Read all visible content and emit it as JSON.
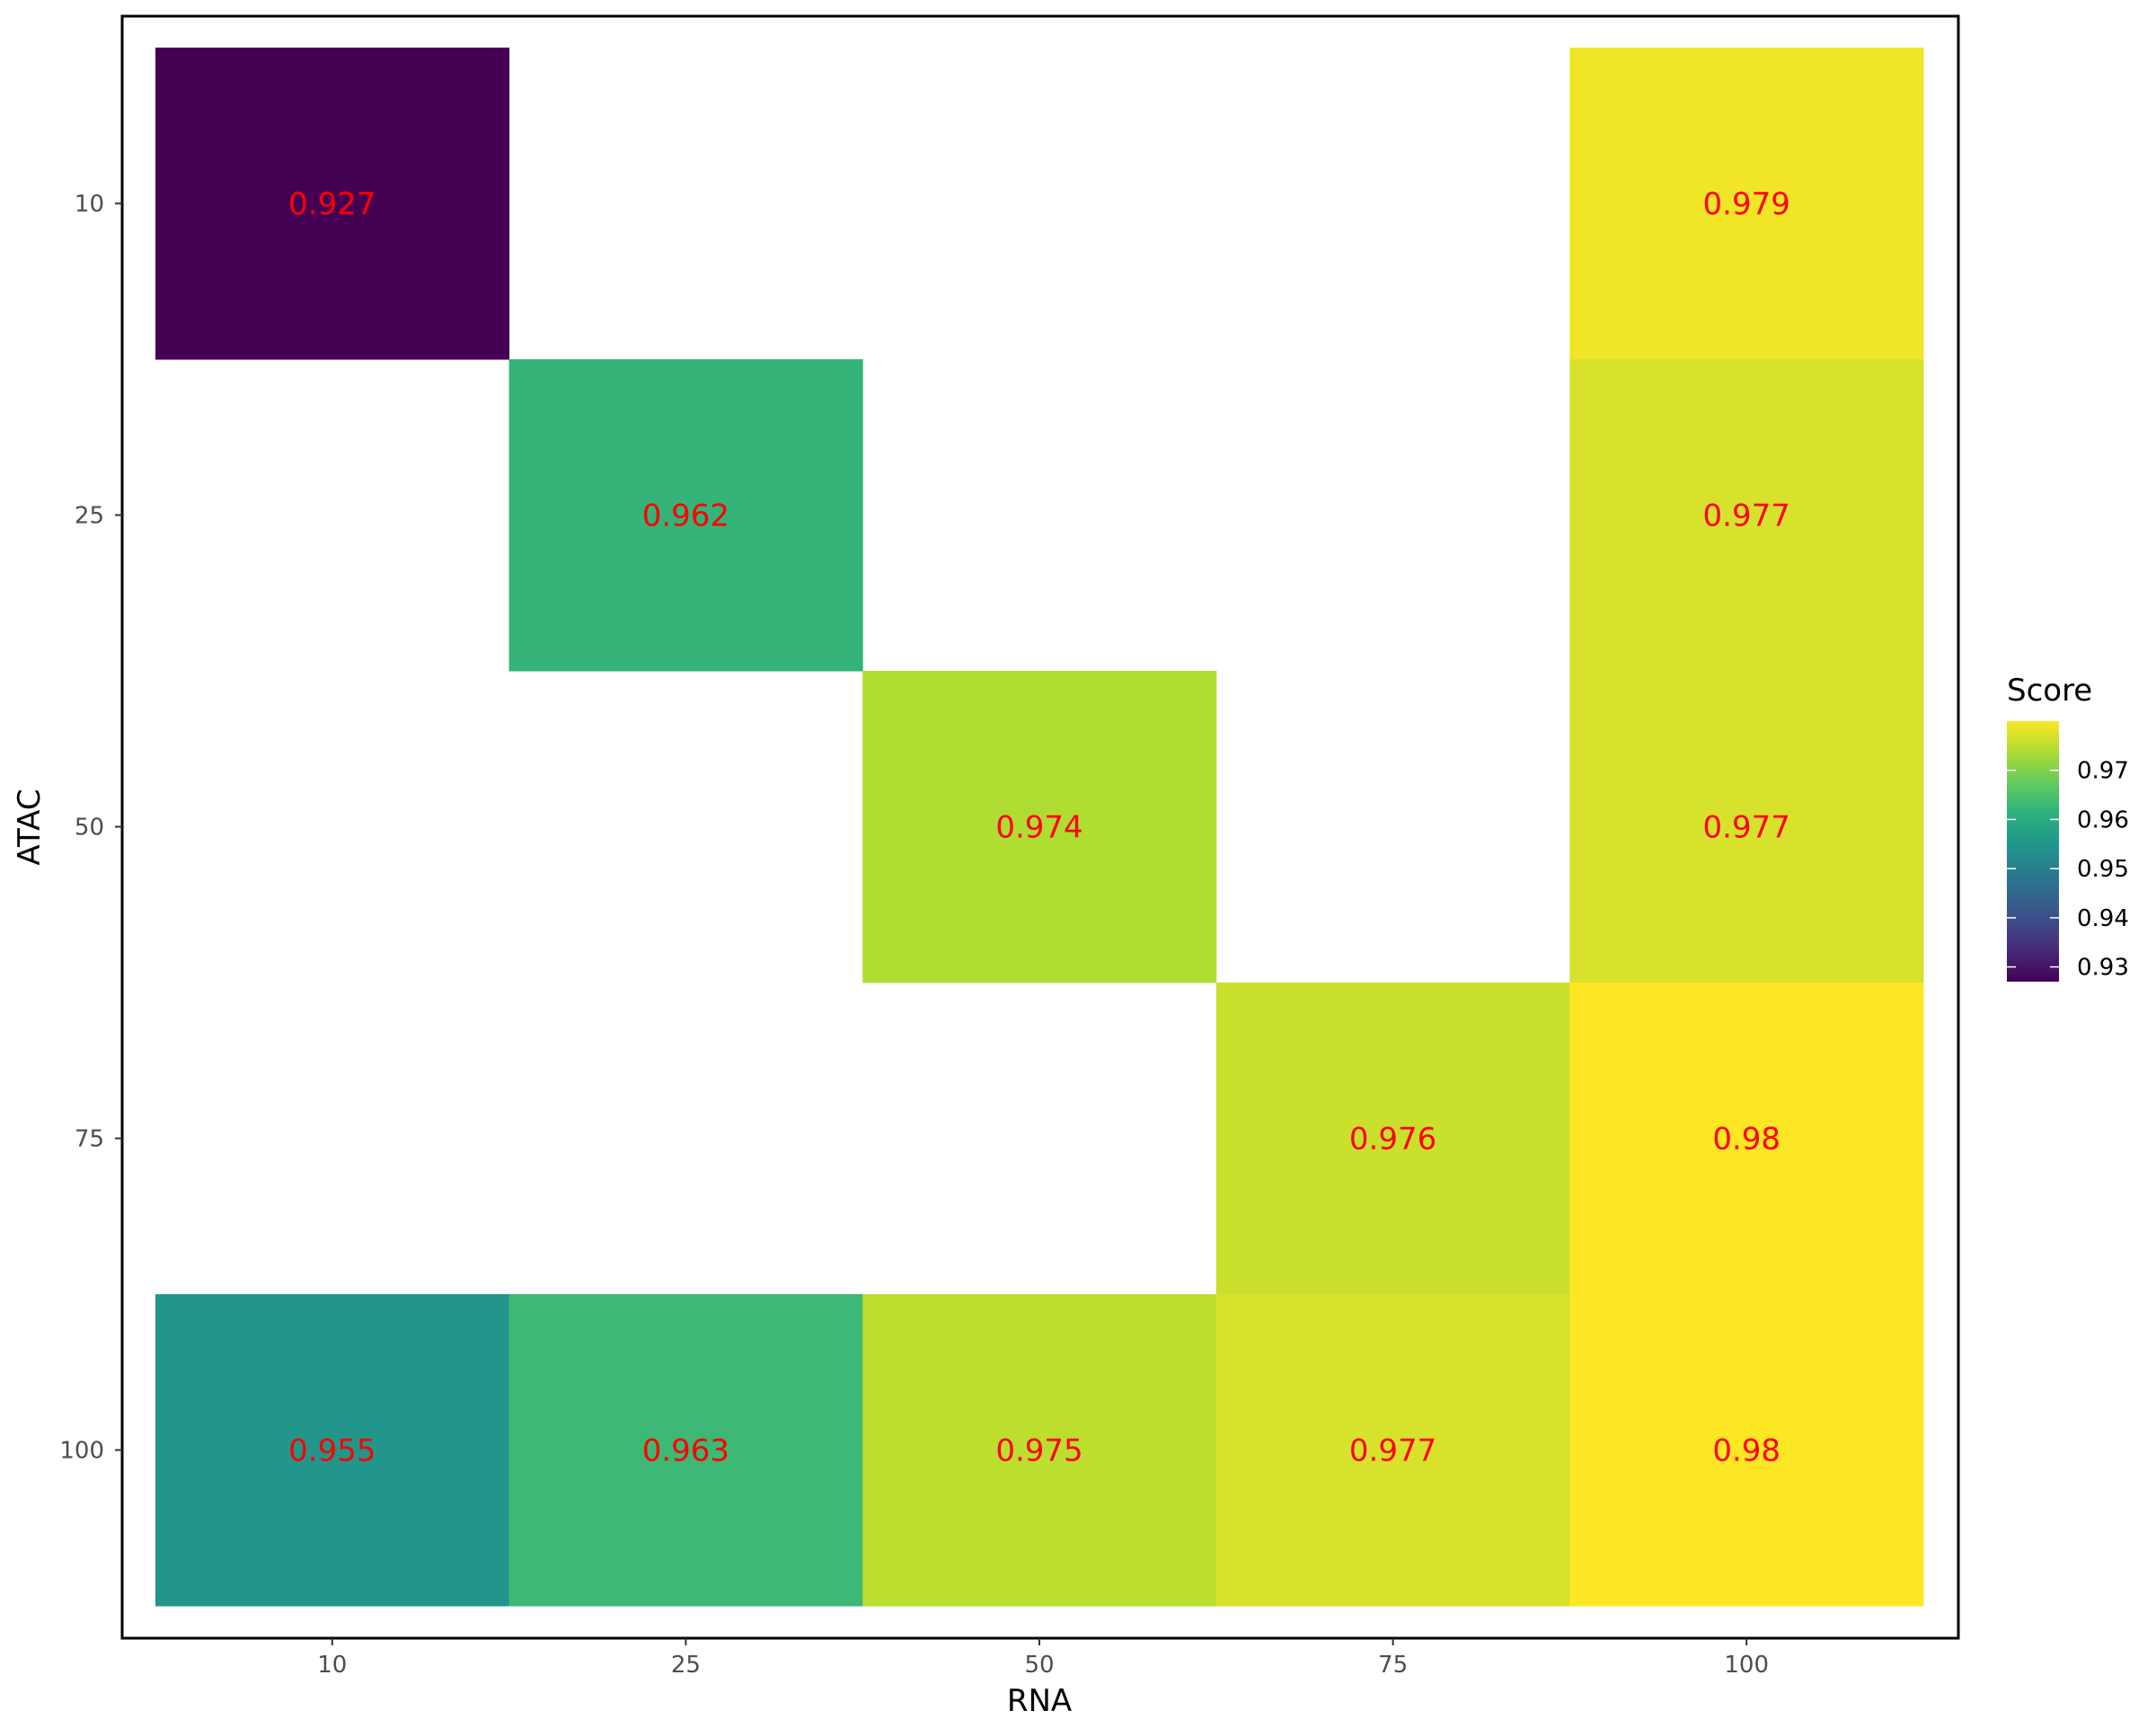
{
  "chart_data": {
    "type": "heatmap",
    "xlabel": "RNA",
    "ylabel": "ATAC",
    "x_categories": [
      "10",
      "25",
      "50",
      "75",
      "100"
    ],
    "y_categories": [
      "10",
      "25",
      "50",
      "75",
      "100"
    ],
    "cells": [
      {
        "x": "10",
        "y": "10",
        "value": 0.927,
        "label": "0.927"
      },
      {
        "x": "100",
        "y": "10",
        "value": 0.979,
        "label": "0.979"
      },
      {
        "x": "25",
        "y": "25",
        "value": 0.962,
        "label": "0.962"
      },
      {
        "x": "100",
        "y": "25",
        "value": 0.977,
        "label": "0.977"
      },
      {
        "x": "50",
        "y": "50",
        "value": 0.974,
        "label": "0.974"
      },
      {
        "x": "100",
        "y": "50",
        "value": 0.977,
        "label": "0.977"
      },
      {
        "x": "75",
        "y": "75",
        "value": 0.976,
        "label": "0.976"
      },
      {
        "x": "100",
        "y": "75",
        "value": 0.98,
        "label": "0.98"
      },
      {
        "x": "10",
        "y": "100",
        "value": 0.955,
        "label": "0.955"
      },
      {
        "x": "25",
        "y": "100",
        "value": 0.963,
        "label": "0.963"
      },
      {
        "x": "50",
        "y": "100",
        "value": 0.975,
        "label": "0.975"
      },
      {
        "x": "75",
        "y": "100",
        "value": 0.977,
        "label": "0.977"
      },
      {
        "x": "100",
        "y": "100",
        "value": 0.98,
        "label": "0.98"
      }
    ],
    "legend": {
      "title": "Score",
      "position": "right",
      "ticks": [
        0.93,
        0.94,
        0.95,
        0.96,
        0.97
      ],
      "tick_labels": [
        "0.93",
        "0.94",
        "0.95",
        "0.96",
        "0.97"
      ],
      "range": [
        0.927,
        0.98
      ]
    },
    "colormap": "viridis",
    "label_color": "#ff0000",
    "grid": false,
    "panel_border": true
  }
}
